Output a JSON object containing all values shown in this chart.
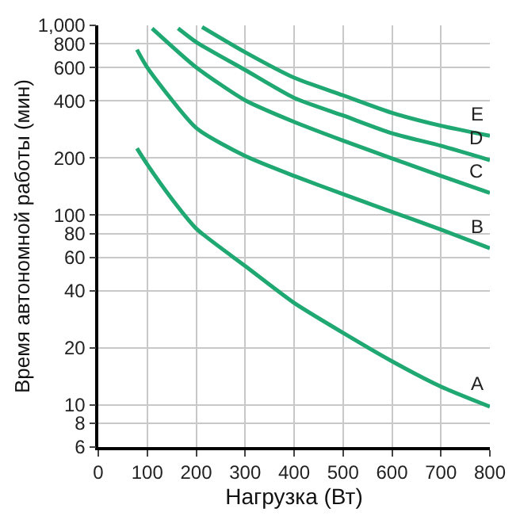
{
  "chart_data": {
    "type": "line",
    "xlabel": "Нагрузка (Вт)",
    "ylabel": "Время автономной работы (мин)",
    "log": "y",
    "grid": true,
    "legend": false,
    "marker": "none",
    "line_style": "solid",
    "xlim": [
      0,
      800
    ],
    "xticks": [
      0,
      100,
      200,
      300,
      400,
      500,
      600,
      700,
      800
    ],
    "ylim": [
      6,
      1000
    ],
    "yticks": [
      6,
      8,
      10,
      20,
      40,
      60,
      80,
      100,
      200,
      400,
      600,
      800,
      {
        "value": 1000,
        "label": "1,000"
      }
    ],
    "series": [
      {
        "name": "A",
        "color": "#1fa872",
        "x": [
          79,
          100,
          150,
          200,
          300,
          400,
          500,
          600,
          700,
          800
        ],
        "values": [
          225,
          185,
          122,
          85,
          54,
          34.5,
          24,
          17,
          12.5,
          9.8
        ]
      },
      {
        "name": "B",
        "color": "#1fa872",
        "x": [
          79,
          100,
          200,
          300,
          400,
          500,
          600,
          700,
          800
        ],
        "values": [
          745,
          600,
          288,
          205,
          161,
          129,
          104,
          84,
          67
        ]
      },
      {
        "name": "C",
        "color": "#1fa872",
        "x": [
          110,
          200,
          300,
          400,
          500,
          600,
          700,
          800
        ],
        "values": [
          964,
          601,
          403,
          310,
          247,
          199,
          161,
          131
        ]
      },
      {
        "name": "D",
        "color": "#1fa872",
        "x": [
          163,
          200,
          300,
          400,
          500,
          600,
          700,
          800
        ],
        "values": [
          964,
          816,
          582,
          415,
          335,
          270,
          232,
          195
        ]
      },
      {
        "name": "E",
        "color": "#1fa872",
        "x": [
          212,
          300,
          400,
          500,
          600,
          700,
          800
        ],
        "values": [
          980,
          722,
          530,
          428,
          346,
          296,
          262
        ]
      }
    ]
  }
}
